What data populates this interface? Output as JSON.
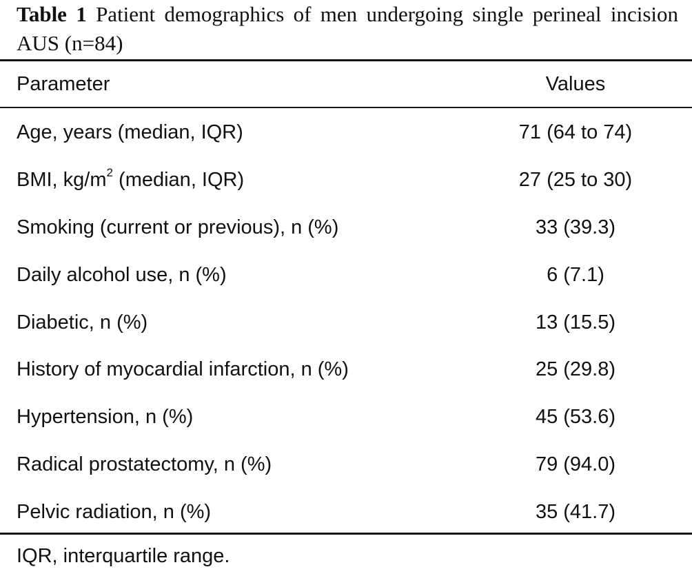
{
  "caption": {
    "label": "Table 1",
    "text": "Patient demographics of men undergoing single perineal incision AUS (n=84)"
  },
  "table": {
    "headers": {
      "parameter": "Parameter",
      "values": "Values"
    },
    "rows": [
      {
        "parameter": "Age, years (median, IQR)",
        "value": "71 (64 to 74)"
      },
      {
        "parameter_pre": "BMI, kg/m",
        "parameter_sup": "2",
        "parameter_post": " (median, IQR)",
        "value": "27 (25 to 30)"
      },
      {
        "parameter": "Smoking (current or previous), n (%)",
        "value": "33 (39.3)"
      },
      {
        "parameter": "Daily alcohol use, n (%)",
        "value": "6 (7.1)"
      },
      {
        "parameter": "Diabetic, n (%)",
        "value": "13 (15.5)"
      },
      {
        "parameter": "History of myocardial infarction, n (%)",
        "value": "25 (29.8)"
      },
      {
        "parameter": "Hypertension, n (%)",
        "value": "45 (53.6)"
      },
      {
        "parameter": "Radical prostatectomy, n (%)",
        "value": "79 (94.0)"
      },
      {
        "parameter": "Pelvic radiation, n (%)",
        "value": "35 (41.7)"
      }
    ]
  },
  "footnote": "IQR, interquartile range."
}
